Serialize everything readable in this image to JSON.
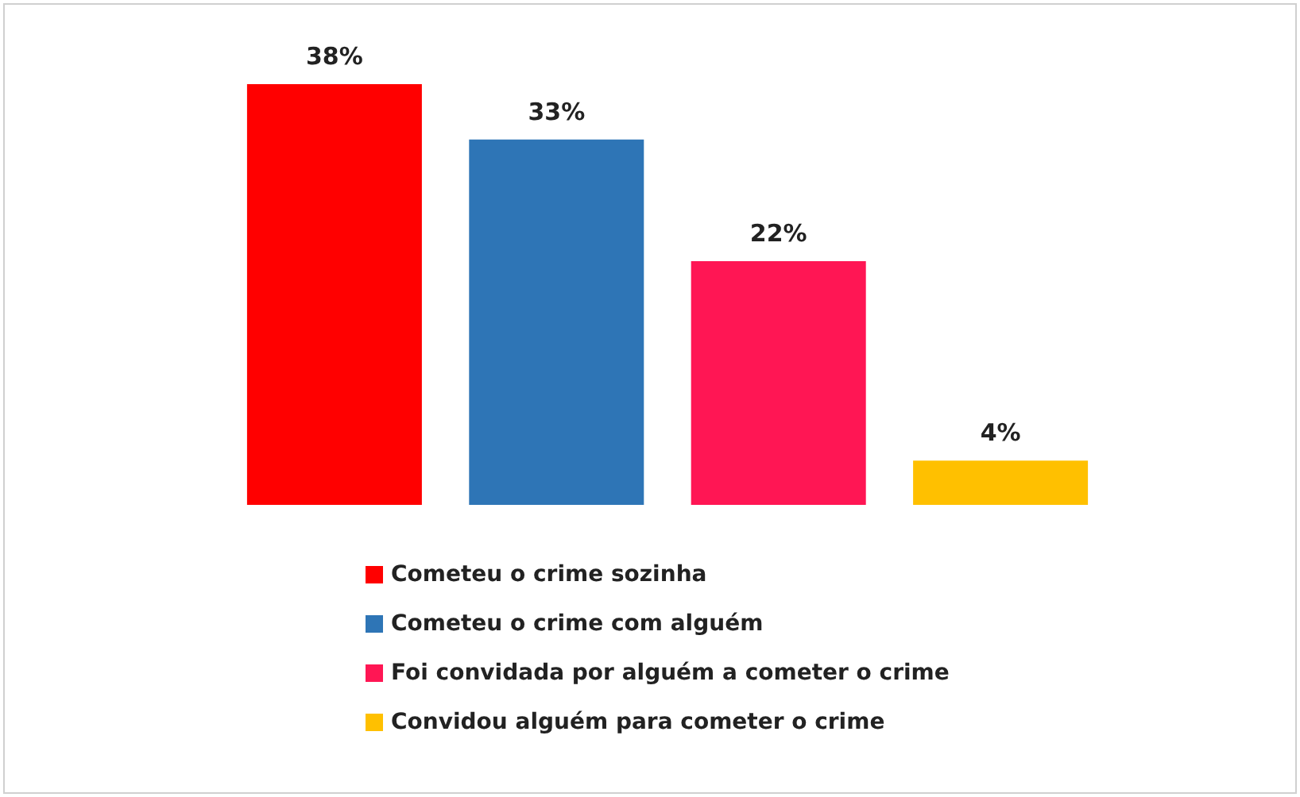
{
  "chart_data": {
    "type": "bar",
    "categories": [
      null
    ],
    "series": [
      {
        "name": "Cometeu o crime sozinha",
        "color": "#ff0000",
        "values": [
          38
        ],
        "value_labels": [
          "38%"
        ]
      },
      {
        "name": "Cometeu o crime com alguém",
        "color": "#2e75b6",
        "values": [
          33
        ],
        "value_labels": [
          "33%"
        ]
      },
      {
        "name": "Foi convidada por alguém a cometer o crime",
        "color": "#ff1654",
        "values": [
          22
        ],
        "value_labels": [
          "22%"
        ]
      },
      {
        "name": "Convidou alguém para cometer o crime",
        "color": "#ffc000",
        "values": [
          4
        ],
        "value_labels": [
          "4%"
        ]
      }
    ],
    "legend": "bottom",
    "grid": false
  }
}
